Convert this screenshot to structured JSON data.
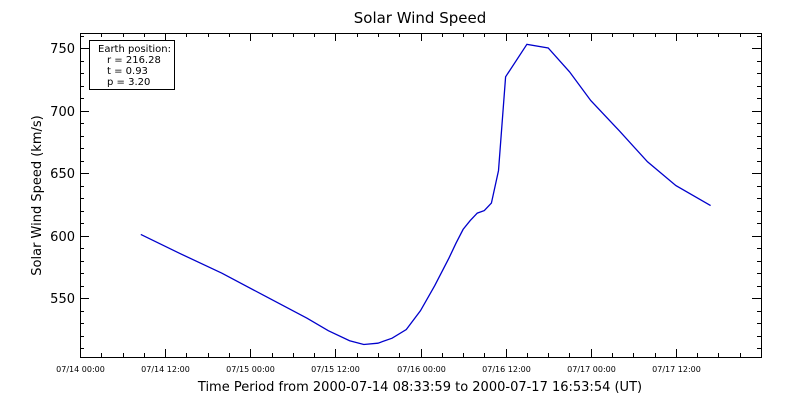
{
  "chart_data": {
    "type": "line",
    "title": "Solar Wind Speed",
    "ylabel": "Solar Wind Speed (km/s)",
    "xlabel": "Time Period from 2000-07-14 08:33:59 to 2000-07-17 16:53:54 (UT)",
    "x_range": [
      "2000-07-14 00:00",
      "2000-07-18 00:00"
    ],
    "ylim": [
      503,
      762
    ],
    "x_ticks": [
      "07/14 00:00",
      "07/14 12:00",
      "07/15 00:00",
      "07/15 12:00",
      "07/16 00:00",
      "07/16 12:00",
      "07/17 00:00",
      "07/17 12:00"
    ],
    "y_ticks": [
      550,
      600,
      650,
      700,
      750
    ],
    "y_tick_labels": [
      "550",
      "600",
      "650",
      "700",
      "750"
    ],
    "line_color": "#0000cc",
    "legend_box": {
      "title": "Earth position:",
      "lines": [
        "r = 216.28",
        "t = 0.93",
        "p = 3.20"
      ],
      "placement": "top-left"
    },
    "series": [
      {
        "x": [
          "2000-07-14 08:34",
          "2000-07-14 14:00",
          "2000-07-14 20:00",
          "2000-07-15 02:00",
          "2000-07-15 08:00",
          "2000-07-15 11:00",
          "2000-07-15 14:00",
          "2000-07-15 16:00",
          "2000-07-15 18:00",
          "2000-07-15 20:00",
          "2000-07-15 22:00",
          "2000-07-16 00:00",
          "2000-07-16 02:00",
          "2000-07-16 04:00",
          "2000-07-16 05:00",
          "2000-07-16 06:00",
          "2000-07-16 07:00",
          "2000-07-16 08:00",
          "2000-07-16 09:00",
          "2000-07-16 10:00",
          "2000-07-16 11:00",
          "2000-07-16 12:00",
          "2000-07-16 15:00",
          "2000-07-16 18:00",
          "2000-07-16 21:00",
          "2000-07-17 00:00",
          "2000-07-17 04:00",
          "2000-07-17 08:00",
          "2000-07-17 12:00",
          "2000-07-17 16:54"
        ],
        "values": [
          601,
          586,
          570,
          552,
          534,
          524,
          516,
          513,
          514,
          518,
          525,
          540,
          560,
          582,
          594,
          605,
          612,
          618,
          620,
          626,
          652,
          727,
          753,
          750,
          731,
          708,
          684,
          659,
          640,
          624
        ]
      }
    ]
  }
}
